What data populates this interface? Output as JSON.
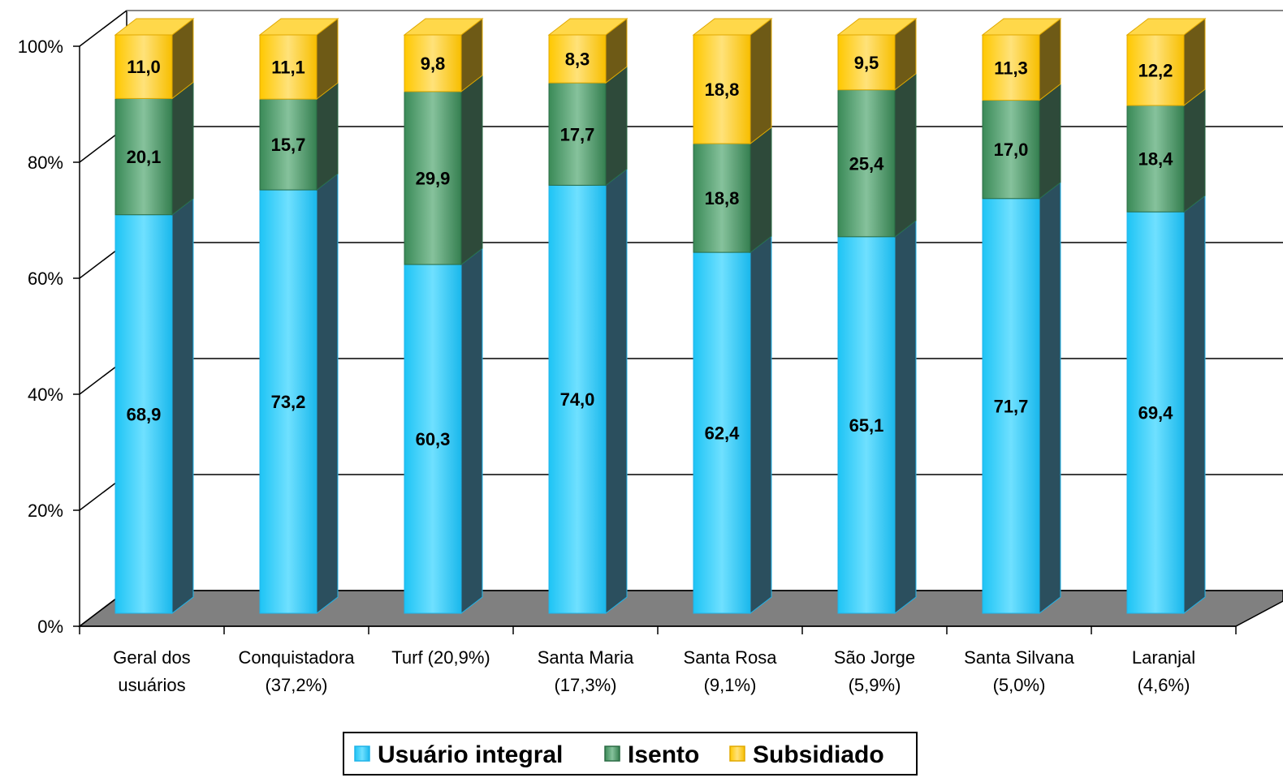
{
  "chart_data": {
    "type": "bar",
    "stacked": true,
    "three_d": true,
    "title": "",
    "xlabel": "",
    "ylabel": "",
    "ylim": [
      0,
      100
    ],
    "y_ticks": [
      "0%",
      "20%",
      "40%",
      "60%",
      "80%",
      "100%"
    ],
    "grid": true,
    "legend_position": "bottom",
    "categories": [
      [
        "Geral dos",
        "usuários"
      ],
      [
        "Conquistadora",
        "(37,2%)"
      ],
      [
        "Turf  (20,9%)"
      ],
      [
        "Santa Maria",
        "(17,3%)"
      ],
      [
        "Santa Rosa",
        "(9,1%)"
      ],
      [
        "São Jorge",
        "(5,9%)"
      ],
      [
        "Santa Silvana",
        "(5,0%)"
      ],
      [
        "Laranjal",
        "(4,6%)"
      ]
    ],
    "series": [
      {
        "name": "Usuário integral",
        "color": "#33CCFF",
        "values": [
          68.9,
          73.2,
          60.3,
          74.0,
          62.4,
          65.1,
          71.7,
          69.4
        ],
        "labels": [
          "68,9",
          "73,2",
          "60,3",
          "74,0",
          "62,4",
          "65,1",
          "71,7",
          "69,4"
        ]
      },
      {
        "name": "Isento",
        "color": "#3F8F5F",
        "values": [
          20.1,
          15.7,
          29.9,
          17.7,
          18.8,
          25.4,
          17.0,
          18.4
        ],
        "labels": [
          "20,1",
          "15,7",
          "29,9",
          "17,7",
          "18,8",
          "25,4",
          "17,0",
          "18,4"
        ]
      },
      {
        "name": "Subsidiado",
        "color": "#FFCC00",
        "values": [
          11.0,
          11.1,
          9.8,
          8.3,
          18.8,
          9.5,
          11.3,
          12.2
        ],
        "labels": [
          "11,0",
          "11,1",
          "9,8",
          "8,3",
          "18,8",
          "9,5",
          "11,3",
          "12,2"
        ]
      }
    ]
  }
}
